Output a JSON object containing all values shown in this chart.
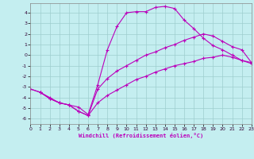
{
  "bg_color": "#c4eef0",
  "grid_color": "#9ecece",
  "line_color": "#bb00bb",
  "xlabel": "Windchill (Refroidissement éolien,°C)",
  "xlim": [
    0,
    23
  ],
  "ylim": [
    -6.5,
    4.9
  ],
  "xticks": [
    0,
    1,
    2,
    3,
    4,
    5,
    6,
    7,
    8,
    9,
    10,
    11,
    12,
    13,
    14,
    15,
    16,
    17,
    18,
    19,
    20,
    21,
    22,
    23
  ],
  "yticks": [
    -6,
    -5,
    -4,
    -3,
    -2,
    -1,
    0,
    1,
    2,
    3,
    4
  ],
  "line1_x": [
    0,
    1,
    2,
    3,
    4,
    5,
    6,
    7,
    8,
    9,
    10,
    11,
    12,
    13,
    14,
    15,
    16,
    17,
    18,
    19,
    20,
    21,
    22,
    23
  ],
  "line1_y": [
    -3.2,
    -3.5,
    -4.1,
    -4.5,
    -4.7,
    -5.3,
    -5.7,
    -4.5,
    -3.8,
    -3.3,
    -2.8,
    -2.3,
    -2.0,
    -1.6,
    -1.3,
    -1.0,
    -0.8,
    -0.6,
    -0.3,
    -0.2,
    0.0,
    -0.2,
    -0.5,
    -0.7
  ],
  "line2_x": [
    0,
    1,
    2,
    3,
    4,
    5,
    6,
    7,
    8,
    9,
    10,
    11,
    12,
    13,
    14,
    15,
    16,
    17,
    18,
    19,
    20,
    21,
    22,
    23
  ],
  "line2_y": [
    -3.2,
    -3.5,
    -4.1,
    -4.5,
    -4.7,
    -5.3,
    -5.7,
    -3.2,
    -2.2,
    -1.5,
    -1.0,
    -0.5,
    0.0,
    0.3,
    0.7,
    1.0,
    1.4,
    1.7,
    2.0,
    1.8,
    1.3,
    0.8,
    0.5,
    -0.7
  ],
  "line3_x": [
    1,
    2,
    3,
    4,
    5,
    6,
    7,
    8,
    9,
    10,
    11,
    12,
    13,
    14,
    15,
    16,
    17,
    18,
    19,
    20,
    21,
    22,
    23
  ],
  "line3_y": [
    -3.5,
    -4.0,
    -4.5,
    -4.7,
    -4.9,
    -5.6,
    -2.8,
    0.5,
    2.7,
    4.0,
    4.1,
    4.1,
    4.5,
    4.6,
    4.4,
    3.3,
    2.5,
    1.6,
    0.9,
    0.5,
    0.0,
    -0.5,
    -0.8
  ]
}
